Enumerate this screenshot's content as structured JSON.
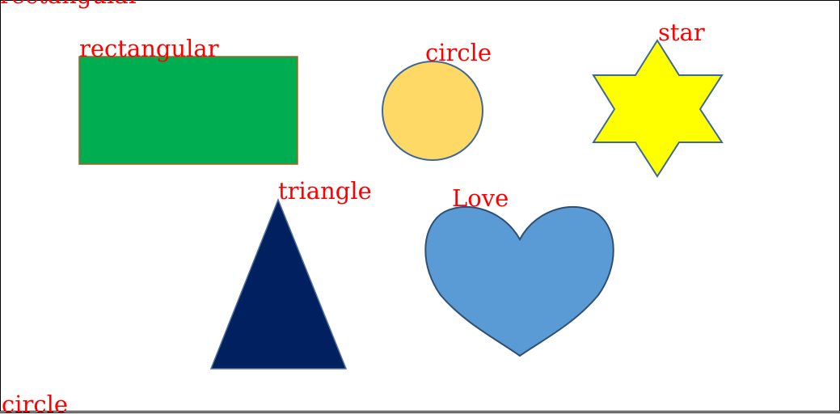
{
  "labels": {
    "top_left_cut": "rectangular",
    "rectangle": "rectangular",
    "circle": "circle",
    "star": "star",
    "triangle": "triangle",
    "heart": "Love",
    "bottom_left": "circle"
  },
  "colors": {
    "label": "#ff0000",
    "rectangle_fill": "#00ad50",
    "rectangle_stroke": "#b55a1c",
    "circle_fill": "#ffd966",
    "circle_stroke": "#3f6898",
    "star_fill": "#ffff00",
    "star_stroke": "#3f6898",
    "triangle_fill": "#002060",
    "triangle_stroke": "#4f6f9a",
    "heart_fill": "#5b9bd5",
    "heart_stroke": "#2f4f75"
  }
}
